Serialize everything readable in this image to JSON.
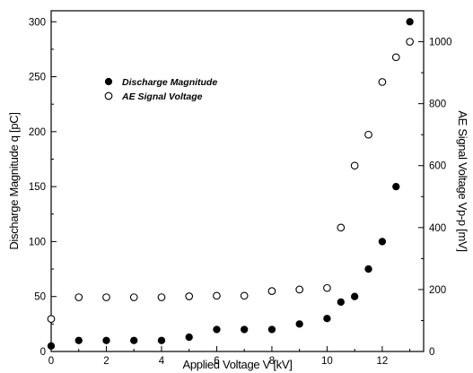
{
  "chart_data": {
    "type": "scatter",
    "title": "",
    "xlabel": "Applied Voltage V [kV]",
    "ylabel_left": "Discharge Magnitude q [pC]",
    "ylabel_right": "AE Signal Voltage Vp-p [mV]",
    "xlim": [
      0,
      13.5
    ],
    "ylim_left": [
      0,
      310
    ],
    "ylim_right": [
      0,
      1100
    ],
    "x_ticks": [
      "0",
      "2",
      "4",
      "6",
      "8",
      "10",
      "12"
    ],
    "y_left_ticks": [
      "0",
      "50",
      "100",
      "150",
      "200",
      "250",
      "300"
    ],
    "y_right_ticks": [
      "0",
      "200",
      "400",
      "600",
      "800",
      "1000"
    ],
    "legend_position": "upper-left",
    "grid": false,
    "series": [
      {
        "name": "Discharge Magnitude",
        "axis": "left",
        "marker": "filled-circle",
        "color": "#000000",
        "x": [
          0,
          1,
          2,
          3,
          4,
          5,
          6,
          7,
          8,
          9,
          10,
          10.5,
          11,
          11.5,
          12,
          12.5,
          13
        ],
        "y": [
          5,
          10,
          10,
          10,
          10,
          13,
          20,
          20,
          20,
          25,
          30,
          45,
          50,
          75,
          100,
          150,
          300
        ]
      },
      {
        "name": "AE Signal Voltage",
        "axis": "right",
        "marker": "open-circle",
        "color": "#000000",
        "x": [
          0,
          1,
          2,
          3,
          4,
          5,
          6,
          7,
          8,
          9,
          10,
          10.5,
          11,
          11.5,
          12,
          12.5,
          13
        ],
        "y": [
          105,
          175,
          175,
          175,
          175,
          178,
          180,
          180,
          195,
          200,
          205,
          400,
          600,
          700,
          870,
          950,
          1000
        ]
      }
    ]
  }
}
